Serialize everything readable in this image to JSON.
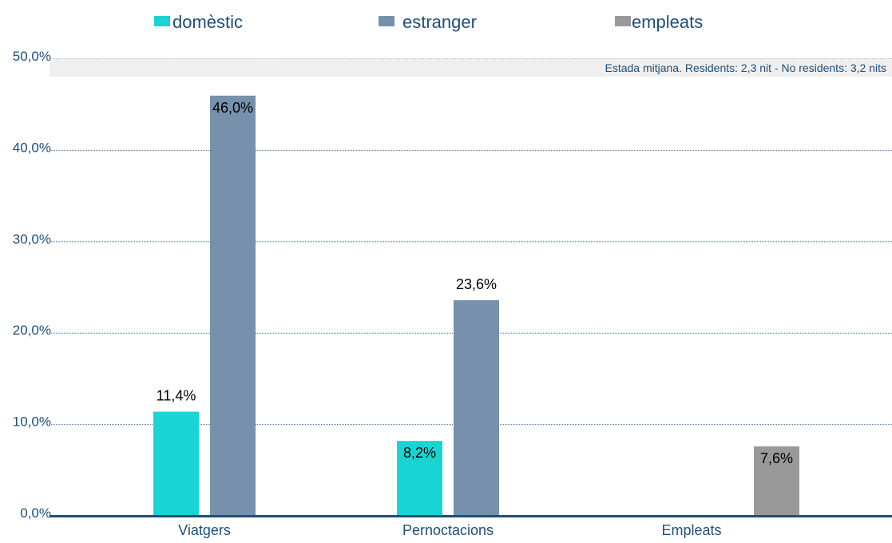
{
  "chart_data": {
    "type": "bar",
    "categories": [
      "Viatgers",
      "Pernoctacions",
      "Empleats"
    ],
    "series": [
      {
        "name": "domèstic",
        "color": "#1ad3d3",
        "values": [
          11.4,
          8.2,
          null
        ],
        "labels": [
          "11,4%",
          "8,2%",
          ""
        ]
      },
      {
        "name": "estranger",
        "color": "#7791ad",
        "values": [
          46.0,
          23.6,
          null
        ],
        "labels": [
          "46,0%",
          "23,6%",
          ""
        ]
      },
      {
        "name": "empleats",
        "color": "#999999",
        "values": [
          null,
          null,
          7.6
        ],
        "labels": [
          "",
          "",
          "7,6%"
        ]
      }
    ],
    "y_ticks": [
      {
        "value": 0,
        "label": "0,0%"
      },
      {
        "value": 10,
        "label": "10,0%"
      },
      {
        "value": 20,
        "label": "20,0%"
      },
      {
        "value": 30,
        "label": "30,0%"
      },
      {
        "value": 40,
        "label": "40,0%"
      },
      {
        "value": 50,
        "label": "50,0%"
      }
    ],
    "ylim": [
      0,
      50
    ],
    "grid": true,
    "legend_position": "top",
    "annotation": "Estada mitjana. Residents: 2,3 nit - No residents: 3,2 nits"
  }
}
